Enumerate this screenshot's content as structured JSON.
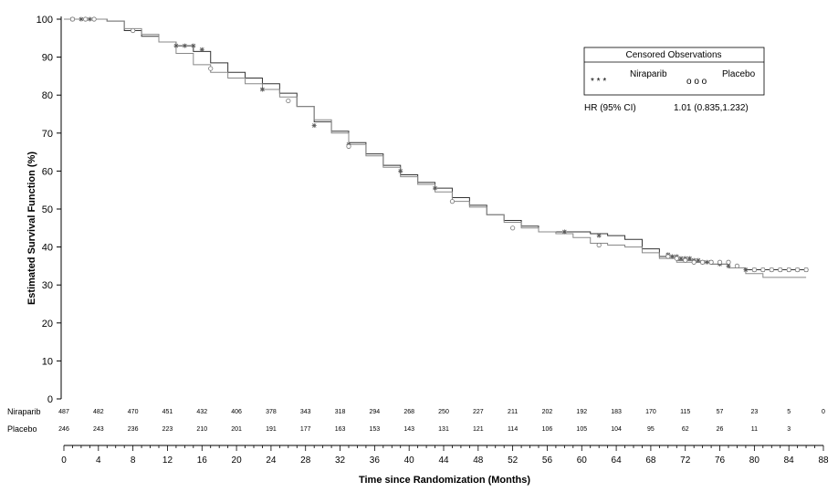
{
  "chart_data": {
    "type": "line",
    "xlabel": "Time since Randomization (Months)",
    "ylabel": "Estimated Survival Function (%)",
    "xlim": [
      0,
      88
    ],
    "ylim": [
      0,
      100
    ],
    "x_ticks": [
      "0",
      "4",
      "8",
      "12",
      "16",
      "20",
      "24",
      "28",
      "32",
      "36",
      "40",
      "44",
      "48",
      "52",
      "56",
      "60",
      "64",
      "68",
      "72",
      "76",
      "80",
      "84",
      "88"
    ],
    "y_ticks": [
      "0",
      "10",
      "20",
      "30",
      "40",
      "50",
      "60",
      "70",
      "80",
      "90",
      "100"
    ],
    "grid": false,
    "legend": {
      "title": "Censored Observations",
      "placement": "top-right",
      "entries": [
        {
          "label": "Niraparib",
          "marker": "* * *"
        },
        {
          "label": "Placebo",
          "marker": "o o o"
        }
      ],
      "hr_label": "HR (95% CI)",
      "hr_value": "1.01 (0.835,1.232)"
    },
    "series": [
      {
        "name": "Niraparib",
        "color": "#333333",
        "x": [
          0,
          2,
          5,
          7,
          9,
          11,
          13,
          15,
          17,
          19,
          21,
          23,
          25,
          27,
          29,
          31,
          33,
          35,
          37,
          39,
          41,
          43,
          45,
          47,
          49,
          51,
          53,
          55,
          57,
          59,
          61,
          63,
          65,
          67,
          69,
          71,
          73,
          75,
          77,
          79,
          81,
          84,
          86
        ],
        "y": [
          100,
          100,
          99.5,
          97,
          95.5,
          94,
          93,
          91.5,
          88.5,
          86,
          84.5,
          83,
          80.5,
          77,
          73,
          70.5,
          67.5,
          64.5,
          61.5,
          59,
          57,
          55.5,
          53,
          51,
          48.5,
          47,
          45.5,
          44,
          44,
          44,
          43.5,
          43,
          42,
          39.5,
          37.5,
          36.5,
          36,
          35.5,
          34.5,
          34,
          34,
          34,
          34
        ]
      },
      {
        "name": "Placebo",
        "color": "#888888",
        "x": [
          0,
          2,
          5,
          7,
          9,
          11,
          13,
          15,
          17,
          19,
          21,
          23,
          25,
          27,
          29,
          31,
          33,
          35,
          37,
          39,
          41,
          43,
          45,
          47,
          49,
          51,
          53,
          55,
          57,
          59,
          61,
          63,
          65,
          67,
          69,
          71,
          73,
          75,
          77,
          79,
          81,
          84,
          86
        ],
        "y": [
          100,
          100,
          99.5,
          97.5,
          96,
          94,
          91,
          88,
          86,
          84.5,
          83,
          81.5,
          79.5,
          77,
          73.5,
          70,
          67,
          64,
          61,
          58.5,
          56.5,
          54.5,
          52,
          50.5,
          48.5,
          46.5,
          45,
          44,
          43.5,
          42.5,
          41,
          40.5,
          40,
          38.5,
          37,
          36,
          36,
          35.5,
          34.5,
          33,
          32,
          32,
          32
        ]
      }
    ],
    "censored": {
      "Niraparib": {
        "x": [
          1,
          2,
          3,
          13,
          14,
          15,
          16,
          23,
          29,
          33,
          39,
          43,
          58,
          62,
          70,
          70.5,
          71,
          71.5,
          72,
          72.5,
          73,
          73.5,
          74,
          74.5,
          75,
          76,
          77,
          79,
          80,
          81,
          82,
          83,
          84,
          85,
          86
        ],
        "y": [
          100,
          100,
          100,
          93,
          93,
          93,
          92,
          81.5,
          72,
          67,
          60,
          55.5,
          44,
          43,
          38,
          37.5,
          37.5,
          37,
          37,
          37,
          36.5,
          36.5,
          36,
          36,
          36,
          35.5,
          35,
          34,
          34,
          34,
          34,
          34,
          34,
          34,
          34
        ]
      },
      "Placebo": {
        "x": [
          1,
          2.5,
          3.5,
          8,
          17,
          26,
          33,
          45,
          52,
          62,
          70,
          71,
          72,
          73,
          74,
          75,
          76,
          77,
          78,
          80,
          81,
          82,
          83,
          84,
          85,
          86
        ],
        "y": [
          100,
          100,
          100,
          97,
          87,
          78.5,
          66.5,
          52,
          45,
          40.5,
          37.5,
          37,
          36.5,
          36,
          36,
          36,
          36,
          36,
          35,
          34,
          34,
          34,
          34,
          34,
          34,
          34
        ]
      }
    },
    "number_at_risk": {
      "rows": [
        {
          "label": "Niraparib",
          "values": [
            "487",
            "482",
            "470",
            "451",
            "432",
            "406",
            "378",
            "343",
            "318",
            "294",
            "268",
            "250",
            "227",
            "211",
            "202",
            "192",
            "183",
            "170",
            "115",
            "57",
            "23",
            "5",
            "0"
          ]
        },
        {
          "label": "Placebo",
          "values": [
            "246",
            "243",
            "236",
            "223",
            "210",
            "201",
            "191",
            "177",
            "163",
            "153",
            "143",
            "131",
            "121",
            "114",
            "106",
            "105",
            "104",
            "95",
            "62",
            "26",
            "11",
            "3",
            ""
          ]
        }
      ]
    }
  }
}
